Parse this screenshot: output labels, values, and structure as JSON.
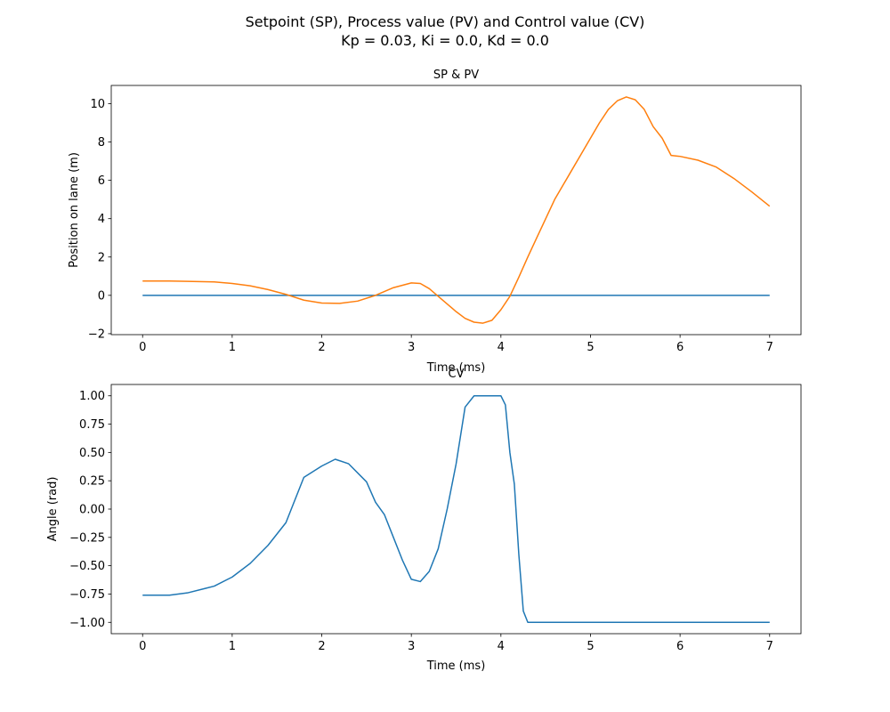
{
  "figure": {
    "title_line1": "Setpoint (SP), Process value (PV) and Control value (CV)",
    "title_line2": "Kp = 0.03, Ki = 0.0, Kd = 0.0"
  },
  "chart_data": [
    {
      "type": "line",
      "title": "SP & PV",
      "xlabel": "Time (ms)",
      "ylabel": "Position on lane (m)",
      "xlim": [
        -0.35,
        7.35
      ],
      "ylim": [
        -2.05,
        10.95
      ],
      "xticks": [
        0,
        1,
        2,
        3,
        4,
        5,
        6,
        7
      ],
      "yticks": [
        -2,
        0,
        2,
        4,
        6,
        8,
        10
      ],
      "grid": false,
      "series": [
        {
          "color": "#1f77b4",
          "x": [
            0,
            7
          ],
          "y": [
            0,
            0
          ]
        },
        {
          "color": "#ff7f0e",
          "x": [
            0,
            0.3,
            0.5,
            0.8,
            1.0,
            1.2,
            1.4,
            1.6,
            1.8,
            2.0,
            2.2,
            2.4,
            2.6,
            2.8,
            3.0,
            3.1,
            3.2,
            3.3,
            3.4,
            3.5,
            3.6,
            3.7,
            3.8,
            3.9,
            4.0,
            4.1,
            4.2,
            4.3,
            4.4,
            4.5,
            4.6,
            4.7,
            4.8,
            4.9,
            5.0,
            5.1,
            5.2,
            5.3,
            5.4,
            5.5,
            5.6,
            5.7,
            5.8,
            5.9,
            6.0,
            6.2,
            6.4,
            6.6,
            6.8,
            7.0
          ],
          "y": [
            0.75,
            0.75,
            0.73,
            0.7,
            0.62,
            0.5,
            0.3,
            0.05,
            -0.25,
            -0.4,
            -0.42,
            -0.3,
            0.0,
            0.4,
            0.65,
            0.62,
            0.35,
            -0.05,
            -0.45,
            -0.85,
            -1.2,
            -1.4,
            -1.45,
            -1.3,
            -0.75,
            -0.05,
            0.95,
            2.0,
            3.0,
            4.0,
            5.0,
            5.8,
            6.6,
            7.4,
            8.2,
            9.0,
            9.7,
            10.15,
            10.35,
            10.2,
            9.7,
            8.8,
            8.2,
            7.3,
            7.25,
            7.05,
            6.7,
            6.1,
            5.4,
            4.65
          ]
        }
      ]
    },
    {
      "type": "line",
      "title": "CV",
      "xlabel": "Time (ms)",
      "ylabel": "Angle (rad)",
      "xlim": [
        -0.35,
        7.35
      ],
      "ylim": [
        -1.1,
        1.1
      ],
      "xticks": [
        0,
        1,
        2,
        3,
        4,
        5,
        6,
        7
      ],
      "yticks": [
        -1.0,
        -0.75,
        -0.5,
        -0.25,
        0.0,
        0.25,
        0.5,
        0.75,
        1.0
      ],
      "grid": false,
      "series": [
        {
          "color": "#1f77b4",
          "x": [
            0,
            0.3,
            0.5,
            0.7,
            0.8,
            1.0,
            1.2,
            1.4,
            1.6,
            1.8,
            2.0,
            2.15,
            2.3,
            2.5,
            2.6,
            2.7,
            2.8,
            2.9,
            3.0,
            3.1,
            3.2,
            3.3,
            3.4,
            3.5,
            3.6,
            3.7,
            3.8,
            3.9,
            4.0,
            4.05,
            4.1,
            4.15,
            4.2,
            4.25,
            4.3,
            4.4,
            5.0,
            6.0,
            7.0
          ],
          "y": [
            -0.76,
            -0.76,
            -0.74,
            -0.7,
            -0.68,
            -0.6,
            -0.48,
            -0.32,
            -0.12,
            0.28,
            0.38,
            0.44,
            0.4,
            0.24,
            0.06,
            -0.05,
            -0.25,
            -0.45,
            -0.62,
            -0.64,
            -0.55,
            -0.35,
            0.0,
            0.4,
            0.9,
            1.0,
            1.0,
            1.0,
            1.0,
            0.92,
            0.5,
            0.22,
            -0.4,
            -0.9,
            -1.0,
            -1.0,
            -1.0,
            -1.0,
            -1.0
          ]
        }
      ]
    }
  ]
}
